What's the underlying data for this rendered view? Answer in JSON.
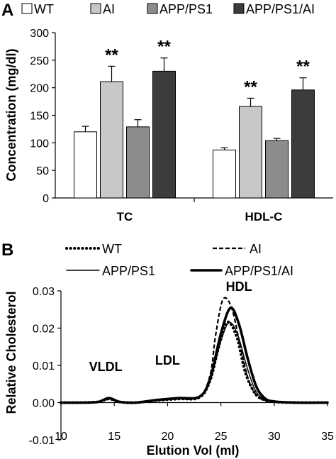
{
  "chart_data": [
    {
      "panel": "A",
      "type": "bar",
      "categories": [
        "TC",
        "HDL-C"
      ],
      "series": [
        {
          "name": "WT",
          "values": [
            120,
            87
          ],
          "errors": [
            10,
            4
          ],
          "color": "#ffffff"
        },
        {
          "name": "AI",
          "values": [
            211,
            166
          ],
          "errors": [
            28,
            15
          ],
          "color": "#c8c8c8"
        },
        {
          "name": "APP/PS1",
          "values": [
            129,
            104
          ],
          "errors": [
            13,
            4
          ],
          "color": "#8c8c8c"
        },
        {
          "name": "APP/PS1/AI",
          "values": [
            230,
            196
          ],
          "errors": [
            24,
            22
          ],
          "color": "#3c3c3c"
        }
      ],
      "annotations": [
        {
          "category": "TC",
          "series": "AI",
          "text": "**"
        },
        {
          "category": "TC",
          "series": "APP/PS1/AI",
          "text": "**"
        },
        {
          "category": "HDL-C",
          "series": "AI",
          "text": "**"
        },
        {
          "category": "HDL-C",
          "series": "APP/PS1/AI",
          "text": "**"
        }
      ],
      "ylabel": "Concentration (mg/dl)",
      "ylim": [
        0,
        300
      ],
      "yticks": [
        "0",
        "50",
        "100",
        "150",
        "200",
        "250",
        "300"
      ],
      "legend_position": "top"
    },
    {
      "panel": "B",
      "type": "line",
      "xlabel": "Elution Vol (ml)",
      "ylabel": "Relative Cholesterol",
      "xlim": [
        10,
        35
      ],
      "ylim": [
        -0.01,
        0.03
      ],
      "xticks": [
        "10",
        "15",
        "20",
        "25",
        "30",
        "35"
      ],
      "yticks": [
        "-0.01",
        "0.00",
        "0.01",
        "0.02",
        "0.03"
      ],
      "series": [
        {
          "name": "WT",
          "style": "dotted",
          "x": [
            10,
            12,
            13.5,
            14.5,
            15.5,
            17,
            19,
            21,
            23,
            24,
            24.8,
            25.6,
            26.5,
            27.3,
            28.2,
            29,
            30,
            32,
            35
          ],
          "y": [
            0,
            0,
            0.0002,
            0.001,
            0.0002,
            0,
            0.0006,
            0.001,
            0.0014,
            0.006,
            0.015,
            0.0216,
            0.0175,
            0.008,
            0.0025,
            0.0008,
            0.0002,
            0,
            0
          ]
        },
        {
          "name": "AI",
          "style": "dashed",
          "x": [
            10,
            12,
            13.5,
            14.5,
            15.5,
            17,
            19,
            21,
            23,
            24,
            24.5,
            25.2,
            26,
            26.8,
            27.6,
            28.4,
            29.2,
            30,
            32,
            35
          ],
          "y": [
            0,
            0,
            0.0002,
            0.0009,
            0.0002,
            0,
            0.0006,
            0.001,
            0.0015,
            0.0075,
            0.018,
            0.0277,
            0.0255,
            0.0155,
            0.006,
            0.0018,
            0.0006,
            0.0002,
            0,
            0
          ]
        },
        {
          "name": "APP/PS1",
          "style": "thin",
          "x": [
            10,
            12,
            13.5,
            14.5,
            15.5,
            17,
            19,
            21,
            23,
            24,
            25,
            25.8,
            26.6,
            27.4,
            28.2,
            29,
            30,
            32,
            35
          ],
          "y": [
            0,
            0,
            0.0002,
            0.0011,
            0.0002,
            0,
            0.0006,
            0.001,
            0.0015,
            0.006,
            0.0165,
            0.0215,
            0.018,
            0.01,
            0.0035,
            0.001,
            0.0003,
            0,
            0
          ]
        },
        {
          "name": "APP/PS1/AI",
          "style": "thick",
          "x": [
            10,
            12,
            13.5,
            14.5,
            15.5,
            17,
            19,
            21,
            23,
            24,
            25,
            25.9,
            26.7,
            27.5,
            28.3,
            29.1,
            30,
            32,
            35
          ],
          "y": [
            0,
            0,
            0.0002,
            0.0012,
            0.0002,
            0,
            0.0007,
            0.0012,
            0.0016,
            0.0065,
            0.0185,
            0.0254,
            0.021,
            0.012,
            0.0045,
            0.0012,
            0.0003,
            0,
            0
          ]
        }
      ],
      "annotations": [
        {
          "text": "VLDL",
          "x": 14.2,
          "y": 0.0085
        },
        {
          "text": "LDL",
          "x": 20.0,
          "y": 0.0102
        },
        {
          "text": "HDL",
          "x": 26.7,
          "y": 0.03
        }
      ],
      "legend_position": "top"
    }
  ]
}
